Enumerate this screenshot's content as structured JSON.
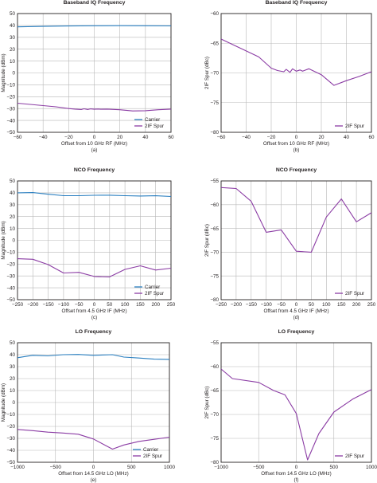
{
  "colors": {
    "carrier": "#2a7fc0",
    "spur": "#8b3ca4",
    "grid": "#b8b8b8",
    "axis": "#231f20"
  },
  "chart_data": [
    {
      "type": "line",
      "title": "Baseband IQ Frequency",
      "xlabel": "Offset from 10 GHz RF (MHz)",
      "ylabel": "Magnitude (dBm)",
      "caption": "(a)",
      "xlim": [
        -60,
        60
      ],
      "ylim": [
        -50,
        50
      ],
      "xticks": [
        -60,
        -40,
        -20,
        0,
        20,
        40,
        60
      ],
      "xticklabels": [
        "−60",
        "−40",
        "−20",
        "0",
        "20",
        "40",
        "60"
      ],
      "yticks": [
        -50,
        -40,
        -30,
        -20,
        -10,
        0,
        10,
        20,
        30,
        40,
        50
      ],
      "yticklabels": [
        "−50",
        "−40",
        "−30",
        "−20",
        "−10",
        "0",
        "10",
        "20",
        "30",
        "40",
        "50"
      ],
      "legend": "bottom-right",
      "grid": true,
      "series": [
        {
          "name": "Carrier",
          "color": "carrier",
          "x": [
            -60,
            -40,
            -20,
            0,
            20,
            40,
            60
          ],
          "y": [
            38.8,
            39.2,
            39.5,
            39.7,
            39.8,
            39.7,
            39.6
          ]
        },
        {
          "name": "2IF Spur",
          "color": "spur",
          "x": [
            -60,
            -50,
            -40,
            -30,
            -20,
            -15,
            -10,
            -8,
            -5,
            -3,
            0,
            3,
            5,
            10,
            20,
            30,
            40,
            50,
            60
          ],
          "y": [
            -25.5,
            -26.5,
            -27.5,
            -28.5,
            -30,
            -30.5,
            -30.8,
            -30.2,
            -30.8,
            -30.3,
            -30.6,
            -30.4,
            -30.6,
            -30.5,
            -31,
            -32,
            -31.8,
            -31,
            -30.5
          ]
        }
      ]
    },
    {
      "type": "line",
      "title": "Baseband IQ Frequency",
      "xlabel": "Offset from 10 GHz RF (MHz)",
      "ylabel": "2IF Spur (dBc)",
      "caption": "(b)",
      "xlim": [
        -60,
        60
      ],
      "ylim": [
        -80,
        -60
      ],
      "xticks": [
        -60,
        -40,
        -20,
        0,
        20,
        40,
        60
      ],
      "xticklabels": [
        "−60",
        "−40",
        "−20",
        "0",
        "20",
        "40",
        "60"
      ],
      "yticks": [
        -80,
        -75,
        -70,
        -65,
        -60
      ],
      "yticklabels": [
        "−80",
        "−75",
        "−70",
        "−65",
        "−60"
      ],
      "legend": "bottom-right",
      "grid": true,
      "series": [
        {
          "name": "2IF Spur",
          "color": "spur",
          "x": [
            -60,
            -50,
            -40,
            -30,
            -20,
            -15,
            -10,
            -8,
            -5,
            -3,
            0,
            3,
            5,
            10,
            20,
            30,
            40,
            50,
            60
          ],
          "y": [
            -64.3,
            -65.3,
            -66.3,
            -67.3,
            -69.2,
            -69.6,
            -69.8,
            -69.4,
            -69.9,
            -69.3,
            -69.7,
            -69.5,
            -69.7,
            -69.3,
            -70.3,
            -72.1,
            -71.3,
            -70.6,
            -69.8
          ]
        }
      ]
    },
    {
      "type": "line",
      "title": "NCO Frequency",
      "xlabel": "Offset from 4.5 GHz IF (MHz)",
      "ylabel": "Magnitude (dBm)",
      "caption": "(c)",
      "xlim": [
        -250,
        250
      ],
      "ylim": [
        -50,
        50
      ],
      "xticks": [
        -250,
        -200,
        -150,
        -100,
        -50,
        0,
        50,
        100,
        150,
        200,
        250
      ],
      "xticklabels": [
        "−250",
        "−200",
        "−150",
        "−100",
        "−50",
        "0",
        "50",
        "100",
        "150",
        "200",
        "250"
      ],
      "yticks": [
        -50,
        -40,
        -30,
        -20,
        -10,
        0,
        10,
        20,
        30,
        40,
        50
      ],
      "yticklabels": [
        "−50",
        "−40",
        "−30",
        "−20",
        "−10",
        "0",
        "10",
        "20",
        "30",
        "40",
        "50"
      ],
      "legend": "bottom-right",
      "grid": true,
      "series": [
        {
          "name": "Carrier",
          "color": "carrier",
          "x": [
            -250,
            -200,
            -150,
            -100,
            -50,
            0,
            50,
            100,
            150,
            200,
            250
          ],
          "y": [
            40,
            40.2,
            38.8,
            37.6,
            37.6,
            37.9,
            38,
            37.6,
            37.3,
            37.5,
            36.9
          ]
        },
        {
          "name": "2IF Spur",
          "color": "spur",
          "x": [
            -250,
            -200,
            -150,
            -100,
            -50,
            0,
            50,
            100,
            150,
            200,
            250
          ],
          "y": [
            -15.5,
            -16,
            -20.5,
            -27.5,
            -27,
            -30.5,
            -30.8,
            -24.5,
            -21.5,
            -25,
            -23.5
          ]
        }
      ]
    },
    {
      "type": "line",
      "title": "NCO Frequency",
      "xlabel": "Offset from 4.5 GHz IF (MHz)",
      "ylabel": "2IF Spur (dBc)",
      "caption": "(d)",
      "xlim": [
        -250,
        250
      ],
      "ylim": [
        -80,
        -55
      ],
      "xticks": [
        -250,
        -200,
        -150,
        -100,
        -50,
        0,
        50,
        100,
        150,
        200,
        250
      ],
      "xticklabels": [
        "−250",
        "−200",
        "−150",
        "−100",
        "−50",
        "0",
        "50",
        "100",
        "150",
        "200",
        "250"
      ],
      "yticks": [
        -80,
        -75,
        -70,
        -65,
        -60,
        -55
      ],
      "yticklabels": [
        "−80",
        "−75",
        "−70",
        "−65",
        "−60",
        "−55"
      ],
      "legend": "bottom-right",
      "grid": true,
      "series": [
        {
          "name": "2IF Spur",
          "color": "spur",
          "x": [
            -250,
            -200,
            -150,
            -100,
            -50,
            0,
            50,
            100,
            150,
            200,
            250
          ],
          "y": [
            -56.4,
            -56.6,
            -59.3,
            -65.8,
            -65.3,
            -69.8,
            -70,
            -62.6,
            -58.8,
            -63.6,
            -61.7
          ]
        }
      ]
    },
    {
      "type": "line",
      "title": "LO Frequency",
      "xlabel": "Offset from 14.5 GHz LO (MHz)",
      "ylabel": "Magnitude (dBm)",
      "caption": "(e)",
      "xlim": [
        -1000,
        1000
      ],
      "ylim": [
        -50,
        50
      ],
      "xticks": [
        -1000,
        -500,
        0,
        500,
        1000
      ],
      "xticklabels": [
        "−1000",
        "−500",
        "0",
        "500",
        "1000"
      ],
      "yticks": [
        -50,
        -40,
        -30,
        -20,
        -10,
        0,
        10,
        20,
        30,
        40,
        50
      ],
      "yticklabels": [
        "−50",
        "−40",
        "−30",
        "−20",
        "−10",
        "0",
        "10",
        "20",
        "30",
        "40",
        "50"
      ],
      "legend": "bottom-right",
      "grid": true,
      "series": [
        {
          "name": "Carrier",
          "color": "carrier",
          "x": [
            -1000,
            -800,
            -600,
            -400,
            -200,
            0,
            250,
            400,
            600,
            800,
            1000
          ],
          "y": [
            37.5,
            39.5,
            39,
            40,
            40.2,
            39.5,
            40,
            38,
            37.2,
            36.3,
            36.1
          ]
        },
        {
          "name": "2IF Spur",
          "color": "spur",
          "x": [
            -1000,
            -800,
            -600,
            -400,
            -200,
            0,
            250,
            400,
            600,
            800,
            1000
          ],
          "y": [
            -22.5,
            -23.5,
            -24.8,
            -25.5,
            -26.5,
            -30.5,
            -39,
            -35.5,
            -32.5,
            -30.8,
            -29
          ]
        }
      ]
    },
    {
      "type": "line",
      "title": "LO Frequency",
      "xlabel": "Offset from 14.5 GHz LO (MHz)",
      "ylabel": "2IF Spur (dBc)",
      "caption": "(f)",
      "xlim": [
        -1000,
        1000
      ],
      "ylim": [
        -80,
        -55
      ],
      "xticks": [
        -1000,
        -500,
        0,
        500,
        1000
      ],
      "xticklabels": [
        "−1000",
        "−500",
        "0",
        "500",
        "1000"
      ],
      "yticks": [
        -80,
        -75,
        -70,
        -65,
        -60,
        -55
      ],
      "yticklabels": [
        "−80",
        "−75",
        "−70",
        "−65",
        "−60",
        "−55"
      ],
      "legend": "bottom-right",
      "grid": true,
      "series": [
        {
          "name": "2IF Spur",
          "color": "spur",
          "x": [
            -1000,
            -850,
            -500,
            -300,
            -150,
            0,
            150,
            300,
            500,
            750,
            1000
          ],
          "y": [
            -60.5,
            -62.5,
            -63.3,
            -65,
            -65.9,
            -69.8,
            -79.5,
            -74,
            -69.5,
            -66.8,
            -64.8
          ]
        }
      ]
    }
  ]
}
